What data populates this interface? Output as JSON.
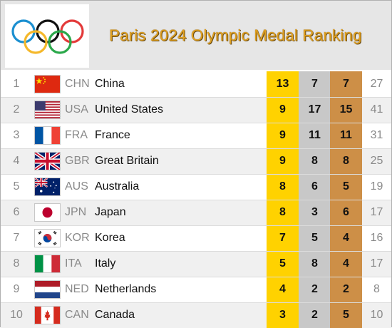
{
  "title": "Paris 2024 Olympic Medal Ranking",
  "colors": {
    "gold": "#ffd200",
    "silver": "#c8c8c8",
    "bronze": "#cd8f47",
    "title": "#e0a020"
  },
  "rows": [
    {
      "rank": "1",
      "code": "CHN",
      "name": "China",
      "gold": "13",
      "silver": "7",
      "bronze": "7",
      "total": "27",
      "flag": "china-flag-icon"
    },
    {
      "rank": "2",
      "code": "USA",
      "name": "United States",
      "gold": "9",
      "silver": "17",
      "bronze": "15",
      "total": "41",
      "flag": "usa-flag-icon"
    },
    {
      "rank": "3",
      "code": "FRA",
      "name": "France",
      "gold": "9",
      "silver": "11",
      "bronze": "11",
      "total": "31",
      "flag": "france-flag-icon"
    },
    {
      "rank": "4",
      "code": "GBR",
      "name": "Great Britain",
      "gold": "9",
      "silver": "8",
      "bronze": "8",
      "total": "25",
      "flag": "great-britain-flag-icon"
    },
    {
      "rank": "5",
      "code": "AUS",
      "name": "Australia",
      "gold": "8",
      "silver": "6",
      "bronze": "5",
      "total": "19",
      "flag": "australia-flag-icon"
    },
    {
      "rank": "6",
      "code": "JPN",
      "name": "Japan",
      "gold": "8",
      "silver": "3",
      "bronze": "6",
      "total": "17",
      "flag": "japan-flag-icon"
    },
    {
      "rank": "7",
      "code": "KOR",
      "name": "Korea",
      "gold": "7",
      "silver": "5",
      "bronze": "4",
      "total": "16",
      "flag": "korea-flag-icon"
    },
    {
      "rank": "8",
      "code": "ITA",
      "name": "Italy",
      "gold": "5",
      "silver": "8",
      "bronze": "4",
      "total": "17",
      "flag": "italy-flag-icon"
    },
    {
      "rank": "9",
      "code": "NED",
      "name": "Netherlands",
      "gold": "4",
      "silver": "2",
      "bronze": "2",
      "total": "8",
      "flag": "netherlands-flag-icon"
    },
    {
      "rank": "10",
      "code": "CAN",
      "name": "Canada",
      "gold": "3",
      "silver": "2",
      "bronze": "5",
      "total": "10",
      "flag": "canada-flag-icon"
    }
  ]
}
